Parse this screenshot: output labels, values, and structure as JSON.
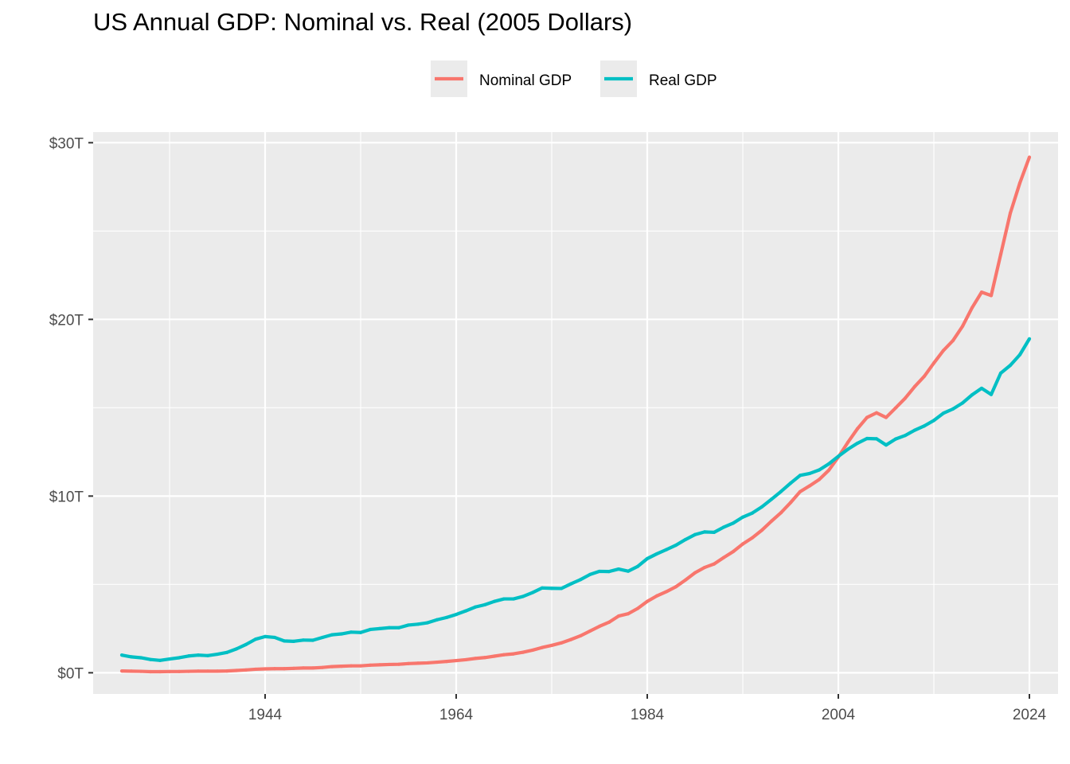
{
  "chart_data": {
    "type": "line",
    "title": "US Annual GDP: Nominal vs. Real (2005 Dollars)",
    "xlabel": "",
    "ylabel": "",
    "xlim": [
      1926,
      2027
    ],
    "ylim": [
      -1.2,
      30.6
    ],
    "x_ticks": [
      1944,
      1964,
      1984,
      2004,
      2024
    ],
    "x_minor_ticks": [
      1934,
      1954,
      1974,
      1994,
      2014
    ],
    "y_ticks": [
      0,
      10,
      20,
      30
    ],
    "y_tick_labels": [
      "$0T",
      "$10T",
      "$20T",
      "$30T"
    ],
    "y_minor_ticks": [
      5,
      15,
      25
    ],
    "grid": true,
    "legend_position": "top",
    "series": [
      {
        "name": "Nominal GDP",
        "color": "#F8766D",
        "points": [
          [
            1929,
            0.1
          ],
          [
            1930,
            0.09
          ],
          [
            1931,
            0.08
          ],
          [
            1932,
            0.06
          ],
          [
            1933,
            0.06
          ],
          [
            1934,
            0.07
          ],
          [
            1935,
            0.07
          ],
          [
            1936,
            0.08
          ],
          [
            1937,
            0.09
          ],
          [
            1938,
            0.09
          ],
          [
            1939,
            0.09
          ],
          [
            1940,
            0.1
          ],
          [
            1941,
            0.13
          ],
          [
            1942,
            0.16
          ],
          [
            1943,
            0.2
          ],
          [
            1944,
            0.22
          ],
          [
            1945,
            0.23
          ],
          [
            1946,
            0.23
          ],
          [
            1947,
            0.25
          ],
          [
            1948,
            0.27
          ],
          [
            1949,
            0.27
          ],
          [
            1950,
            0.3
          ],
          [
            1951,
            0.35
          ],
          [
            1952,
            0.37
          ],
          [
            1953,
            0.39
          ],
          [
            1954,
            0.39
          ],
          [
            1955,
            0.43
          ],
          [
            1956,
            0.45
          ],
          [
            1957,
            0.47
          ],
          [
            1958,
            0.48
          ],
          [
            1959,
            0.52
          ],
          [
            1960,
            0.54
          ],
          [
            1961,
            0.56
          ],
          [
            1962,
            0.6
          ],
          [
            1963,
            0.64
          ],
          [
            1964,
            0.69
          ],
          [
            1965,
            0.74
          ],
          [
            1966,
            0.81
          ],
          [
            1967,
            0.86
          ],
          [
            1968,
            0.94
          ],
          [
            1969,
            1.02
          ],
          [
            1970,
            1.07
          ],
          [
            1971,
            1.16
          ],
          [
            1972,
            1.28
          ],
          [
            1973,
            1.43
          ],
          [
            1974,
            1.55
          ],
          [
            1975,
            1.69
          ],
          [
            1976,
            1.88
          ],
          [
            1977,
            2.09
          ],
          [
            1978,
            2.36
          ],
          [
            1979,
            2.63
          ],
          [
            1980,
            2.86
          ],
          [
            1981,
            3.21
          ],
          [
            1982,
            3.34
          ],
          [
            1983,
            3.64
          ],
          [
            1984,
            4.04
          ],
          [
            1985,
            4.35
          ],
          [
            1986,
            4.59
          ],
          [
            1987,
            4.87
          ],
          [
            1988,
            5.25
          ],
          [
            1989,
            5.66
          ],
          [
            1990,
            5.96
          ],
          [
            1991,
            6.16
          ],
          [
            1992,
            6.52
          ],
          [
            1993,
            6.86
          ],
          [
            1994,
            7.29
          ],
          [
            1995,
            7.64
          ],
          [
            1996,
            8.07
          ],
          [
            1997,
            8.58
          ],
          [
            1998,
            9.06
          ],
          [
            1999,
            9.63
          ],
          [
            2000,
            10.25
          ],
          [
            2001,
            10.58
          ],
          [
            2002,
            10.94
          ],
          [
            2003,
            11.46
          ],
          [
            2004,
            12.21
          ],
          [
            2005,
            13.04
          ],
          [
            2006,
            13.81
          ],
          [
            2007,
            14.45
          ],
          [
            2008,
            14.71
          ],
          [
            2009,
            14.45
          ],
          [
            2010,
            14.99
          ],
          [
            2011,
            15.54
          ],
          [
            2012,
            16.2
          ],
          [
            2013,
            16.78
          ],
          [
            2014,
            17.53
          ],
          [
            2015,
            18.24
          ],
          [
            2016,
            18.8
          ],
          [
            2017,
            19.61
          ],
          [
            2018,
            20.66
          ],
          [
            2019,
            21.54
          ],
          [
            2020,
            21.35
          ],
          [
            2021,
            23.68
          ],
          [
            2022,
            26.01
          ],
          [
            2023,
            27.72
          ],
          [
            2024,
            29.18
          ]
        ]
      },
      {
        "name": "Real GDP",
        "color": "#00BFC4",
        "points": [
          [
            1929,
            1.0
          ],
          [
            1930,
            0.9
          ],
          [
            1931,
            0.85
          ],
          [
            1932,
            0.75
          ],
          [
            1933,
            0.7
          ],
          [
            1934,
            0.78
          ],
          [
            1935,
            0.85
          ],
          [
            1936,
            0.95
          ],
          [
            1937,
            1.0
          ],
          [
            1938,
            0.97
          ],
          [
            1939,
            1.05
          ],
          [
            1940,
            1.15
          ],
          [
            1941,
            1.35
          ],
          [
            1942,
            1.6
          ],
          [
            1943,
            1.9
          ],
          [
            1944,
            2.05
          ],
          [
            1945,
            2.0
          ],
          [
            1946,
            1.8
          ],
          [
            1947,
            1.78
          ],
          [
            1948,
            1.85
          ],
          [
            1949,
            1.84
          ],
          [
            1950,
            2.0
          ],
          [
            1951,
            2.15
          ],
          [
            1952,
            2.2
          ],
          [
            1953,
            2.3
          ],
          [
            1954,
            2.28
          ],
          [
            1955,
            2.45
          ],
          [
            1956,
            2.5
          ],
          [
            1957,
            2.55
          ],
          [
            1958,
            2.55
          ],
          [
            1959,
            2.7
          ],
          [
            1960,
            2.75
          ],
          [
            1961,
            2.83
          ],
          [
            1962,
            3.0
          ],
          [
            1963,
            3.13
          ],
          [
            1964,
            3.3
          ],
          [
            1965,
            3.5
          ],
          [
            1966,
            3.72
          ],
          [
            1967,
            3.85
          ],
          [
            1968,
            4.04
          ],
          [
            1969,
            4.18
          ],
          [
            1970,
            4.18
          ],
          [
            1971,
            4.32
          ],
          [
            1972,
            4.54
          ],
          [
            1973,
            4.8
          ],
          [
            1974,
            4.78
          ],
          [
            1975,
            4.77
          ],
          [
            1976,
            5.03
          ],
          [
            1977,
            5.27
          ],
          [
            1978,
            5.56
          ],
          [
            1979,
            5.74
          ],
          [
            1980,
            5.73
          ],
          [
            1981,
            5.87
          ],
          [
            1982,
            5.75
          ],
          [
            1983,
            6.02
          ],
          [
            1984,
            6.46
          ],
          [
            1985,
            6.73
          ],
          [
            1986,
            6.97
          ],
          [
            1987,
            7.22
          ],
          [
            1988,
            7.54
          ],
          [
            1989,
            7.82
          ],
          [
            1990,
            7.97
          ],
          [
            1991,
            7.95
          ],
          [
            1992,
            8.24
          ],
          [
            1993,
            8.47
          ],
          [
            1994,
            8.81
          ],
          [
            1995,
            9.04
          ],
          [
            1996,
            9.39
          ],
          [
            1997,
            9.82
          ],
          [
            1998,
            10.26
          ],
          [
            1999,
            10.73
          ],
          [
            2000,
            11.17
          ],
          [
            2001,
            11.28
          ],
          [
            2002,
            11.48
          ],
          [
            2003,
            11.82
          ],
          [
            2004,
            12.25
          ],
          [
            2005,
            12.65
          ],
          [
            2006,
            12.99
          ],
          [
            2007,
            13.26
          ],
          [
            2008,
            13.24
          ],
          [
            2009,
            12.89
          ],
          [
            2010,
            13.23
          ],
          [
            2011,
            13.43
          ],
          [
            2012,
            13.73
          ],
          [
            2013,
            13.97
          ],
          [
            2014,
            14.28
          ],
          [
            2015,
            14.69
          ],
          [
            2016,
            14.93
          ],
          [
            2017,
            15.27
          ],
          [
            2018,
            15.73
          ],
          [
            2019,
            16.1
          ],
          [
            2020,
            15.75
          ],
          [
            2021,
            16.96
          ],
          [
            2022,
            17.4
          ],
          [
            2023,
            18.0
          ],
          [
            2024,
            18.9
          ]
        ]
      }
    ]
  }
}
